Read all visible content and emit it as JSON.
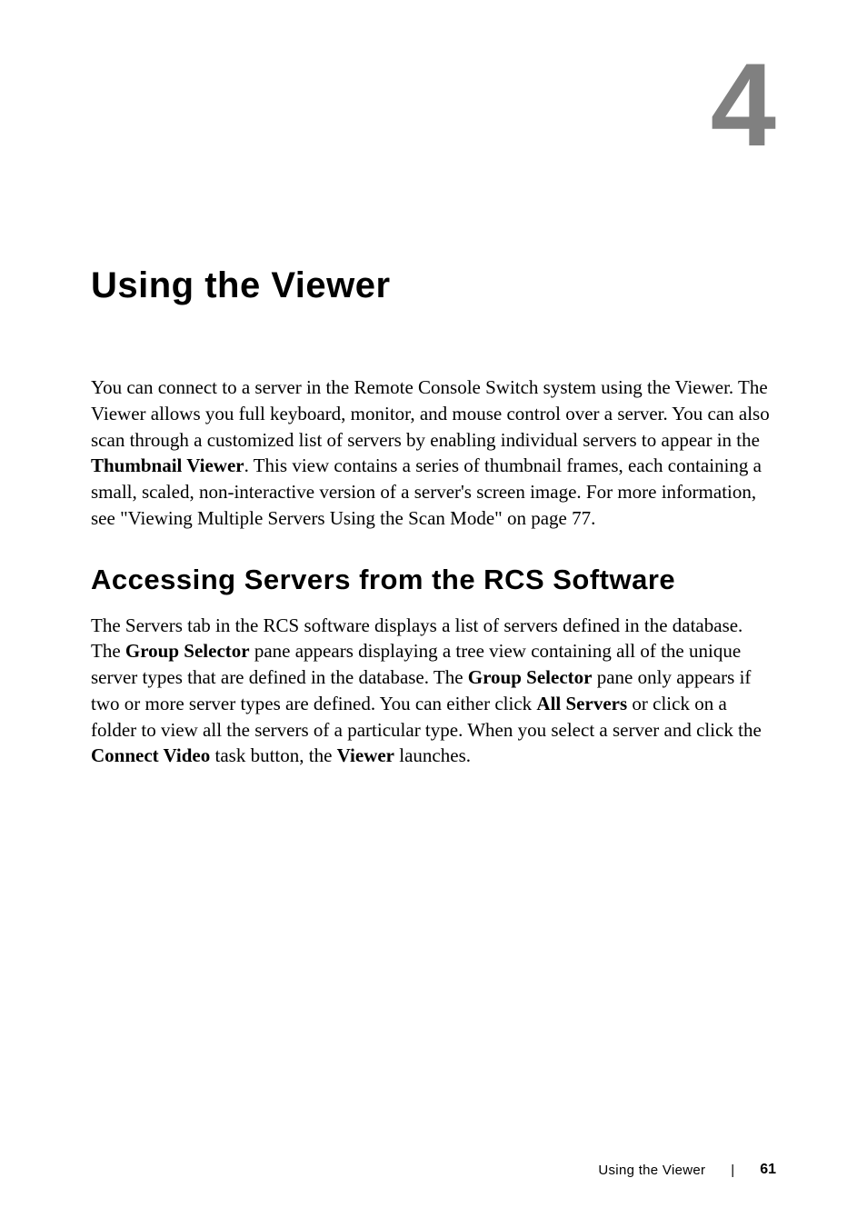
{
  "chapter": {
    "number": "4",
    "title": "Using the Viewer"
  },
  "paragraphs": {
    "intro_part1": "You can connect to a server in the Remote Console Switch system using the Viewer. The Viewer allows you full keyboard, monitor, and mouse control over a server. You can also scan through a customized list of servers by enabling individual servers to appear in the ",
    "intro_bold1": "Thumbnail Viewer",
    "intro_part2": ". This view contains a series of thumbnail frames, each containing a small, scaled, non-interactive version of a server's screen image. For more information, see \"Viewing Multiple Servers Using the Scan Mode\" on page 77."
  },
  "section": {
    "heading": "Accessing Servers from the RCS Software",
    "body_part1": "The Servers tab in the RCS software displays a list of servers defined in the database. The ",
    "body_bold1": "Group Selector",
    "body_part2": " pane appears displaying a tree view containing all of the unique server types that are defined in the database. The ",
    "body_bold2": "Group Selector",
    "body_part3": " pane only appears if two or more server types are defined. You can either click ",
    "body_bold3": "All Servers",
    "body_part4": " or click on a folder to view all the servers of a particular type. When you select a server and click the ",
    "body_bold4": "Connect Video",
    "body_part5": " task button, the ",
    "body_bold5": "Viewer",
    "body_part6": " launches."
  },
  "footer": {
    "section_name": "Using the Viewer",
    "divider": "|",
    "page_number": "61"
  },
  "colors": {
    "chapter_number": "#808080",
    "text": "#000000",
    "background": "#ffffff"
  },
  "typography": {
    "chapter_number_size": 130,
    "chapter_title_size": 40,
    "section_heading_size": 31,
    "body_size": 21,
    "footer_size": 15,
    "sans_font": "Arial, Helvetica, sans-serif",
    "serif_font": "Georgia, Times New Roman, serif"
  }
}
